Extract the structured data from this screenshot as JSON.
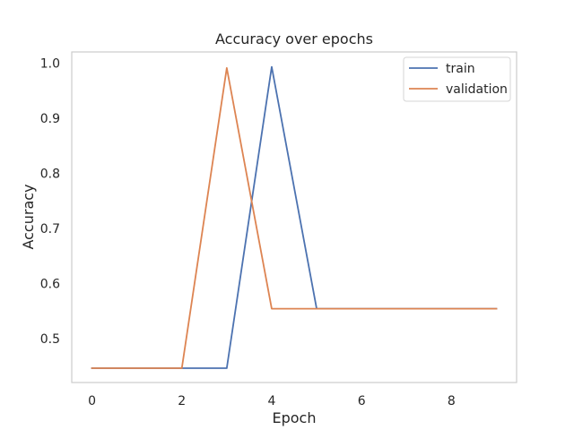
{
  "chart_data": {
    "type": "line",
    "title": "Accuracy over epochs",
    "xlabel": "Epoch",
    "ylabel": "Accuracy",
    "x": [
      0,
      1,
      2,
      3,
      4,
      5,
      6,
      7,
      8,
      9
    ],
    "xlim": [
      -0.45,
      9.45
    ],
    "ylim": [
      0.42,
      1.02
    ],
    "xticks": [
      0,
      2,
      4,
      6,
      8
    ],
    "yticks": [
      0.5,
      0.6,
      0.7,
      0.8,
      0.9,
      1.0
    ],
    "ytick_labels": [
      "0.5",
      "0.6",
      "0.7",
      "0.8",
      "0.9",
      "1.0"
    ],
    "grid": false,
    "legend_position": "top-right",
    "series": [
      {
        "name": "train",
        "color": "#4c72b0",
        "values": [
          0.446,
          0.446,
          0.446,
          0.446,
          0.993,
          0.554,
          0.554,
          0.554,
          0.554,
          0.554
        ]
      },
      {
        "name": "validation",
        "color": "#dd8452",
        "values": [
          0.446,
          0.446,
          0.446,
          0.991,
          0.554,
          0.554,
          0.554,
          0.554,
          0.554,
          0.554
        ]
      }
    ]
  }
}
